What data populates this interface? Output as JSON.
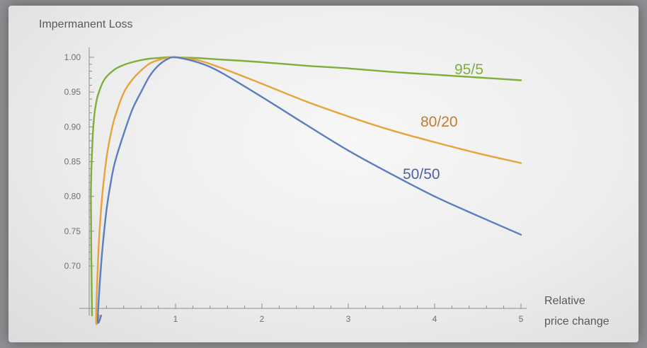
{
  "chart_data": {
    "type": "line",
    "ylabel": "Impermanent Loss",
    "xlabel_lines": [
      "Relative",
      "price change"
    ],
    "xlim": [
      0,
      5
    ],
    "y_ticks": [
      1.0,
      0.95,
      0.9,
      0.85,
      0.8,
      0.75,
      0.7
    ],
    "x_ticks": [
      1,
      2,
      3,
      4,
      5
    ],
    "y_tick_labels": [
      "1.00",
      "0.95",
      "0.90",
      "0.85",
      "0.80",
      "0.75",
      "0.70"
    ],
    "x_tick_labels": [
      "1",
      "2",
      "3",
      "4",
      "5"
    ],
    "series": [
      {
        "name": "95/5",
        "color": "#7fae3c",
        "x": [
          0.02,
          0.04,
          0.06,
          0.08,
          0.1,
          0.15,
          0.2,
          0.3,
          0.4,
          0.5,
          0.6,
          0.7,
          0.8,
          0.9,
          1.0,
          1.25,
          1.5,
          2.0,
          2.5,
          3.0,
          3.5,
          4.0,
          4.5,
          5.0
        ],
        "values": [
          0.8,
          0.884,
          0.917,
          0.934,
          0.945,
          0.962,
          0.972,
          0.983,
          0.989,
          0.993,
          0.996,
          0.998,
          0.999,
          1.0,
          1.0,
          0.999,
          0.997,
          0.993,
          0.988,
          0.984,
          0.979,
          0.975,
          0.971,
          0.967
        ]
      },
      {
        "name": "80/20",
        "color": "#e8a23a",
        "x": [
          0.08,
          0.1,
          0.12,
          0.15,
          0.2,
          0.25,
          0.3,
          0.4,
          0.5,
          0.6,
          0.7,
          0.8,
          0.9,
          1.0,
          1.25,
          1.5,
          2.0,
          2.5,
          3.0,
          3.5,
          4.0,
          4.5,
          5.0
        ],
        "values": [
          0.62,
          0.7,
          0.75,
          0.8,
          0.855,
          0.89,
          0.915,
          0.949,
          0.968,
          0.981,
          0.991,
          0.996,
          0.999,
          1.0,
          0.996,
          0.986,
          0.962,
          0.937,
          0.915,
          0.895,
          0.878,
          0.862,
          0.848
        ]
      },
      {
        "name": "50/50",
        "color": "#5b7ec3",
        "x": [
          0.1,
          0.12,
          0.15,
          0.2,
          0.25,
          0.3,
          0.4,
          0.5,
          0.6,
          0.7,
          0.8,
          0.9,
          1.0,
          1.25,
          1.5,
          2.0,
          2.5,
          3.0,
          3.5,
          4.0,
          4.5,
          5.0
        ],
        "values": [
          0.62,
          0.67,
          0.72,
          0.78,
          0.82,
          0.85,
          0.89,
          0.925,
          0.95,
          0.973,
          0.988,
          0.997,
          1.0,
          0.993,
          0.98,
          0.943,
          0.904,
          0.866,
          0.832,
          0.8,
          0.772,
          0.745
        ]
      }
    ],
    "annotations": [
      "95/5",
      "80/20",
      "50/50"
    ],
    "grid": false
  }
}
